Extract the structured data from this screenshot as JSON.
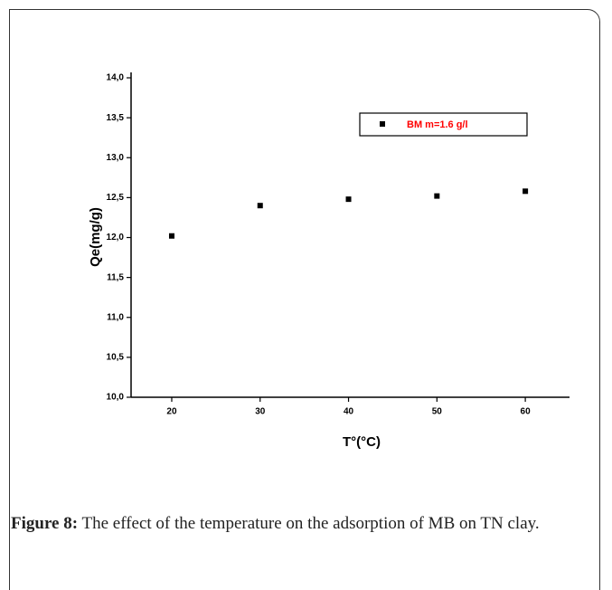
{
  "chart_data": {
    "type": "scatter",
    "x_label": "T°(°C)",
    "y_label": "Qe(mg/g)",
    "x": [
      20,
      30,
      40,
      50,
      60
    ],
    "series": [
      {
        "name": "BM m=1.6 g/l",
        "color": "#000000",
        "values": [
          12.02,
          12.4,
          12.48,
          12.52,
          12.58
        ]
      }
    ],
    "legend_text_color": "#ff0000",
    "xlim": [
      15.4,
      65
    ],
    "xticks": [
      20,
      30,
      40,
      50,
      60
    ],
    "ylim": [
      10,
      14
    ],
    "yticks": [
      {
        "value": 10,
        "label": "10,0"
      },
      {
        "value": 10.5,
        "label": "10,5"
      },
      {
        "value": 11,
        "label": "11,0"
      },
      {
        "value": 11.5,
        "label": "11,5"
      },
      {
        "value": 12,
        "label": "12,0"
      },
      {
        "value": 12.5,
        "label": "12,5"
      },
      {
        "value": 13,
        "label": "13,0"
      },
      {
        "value": 13.5,
        "label": "13,5"
      },
      {
        "value": 14,
        "label": "14,0"
      }
    ],
    "grid": false
  },
  "caption": {
    "label": "Figure 8:",
    "text": "The effect of the temperature on the adsorption of MB on TN clay."
  }
}
